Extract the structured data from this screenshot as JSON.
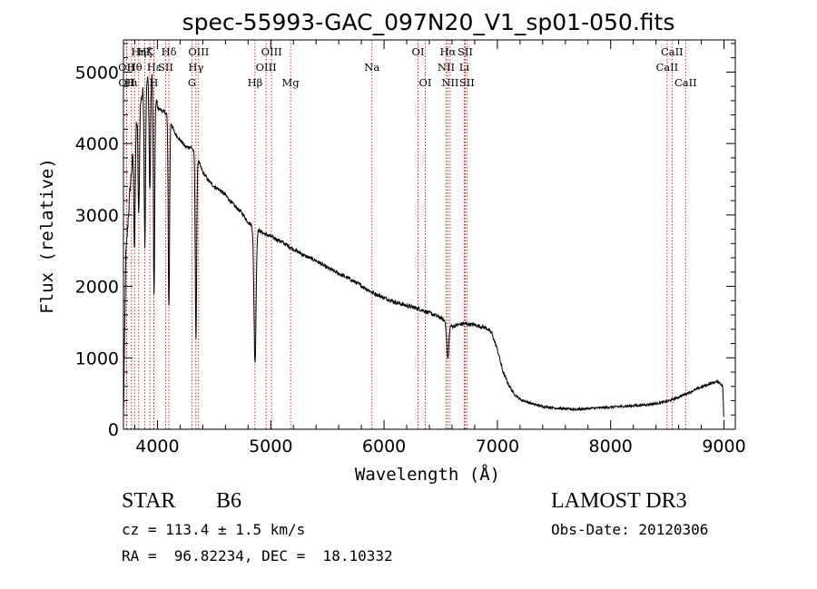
{
  "chart_data": {
    "type": "line",
    "title": "spec-55993-GAC_097N20_V1_sp01-050.fits",
    "xlabel": "Wavelength (Å)",
    "ylabel": "Flux (relative)",
    "xlim": [
      3700,
      9100
    ],
    "ylim": [
      0,
      5450
    ],
    "x_ticks": [
      4000,
      5000,
      6000,
      7000,
      8000,
      9000
    ],
    "y_ticks": [
      0,
      1000,
      2000,
      3000,
      4000,
      5000
    ],
    "continuum": {
      "x": [
        3700,
        3720,
        3760,
        3800,
        3840,
        3880,
        3920,
        3960,
        4000,
        4050,
        4100,
        4150,
        4200,
        4250,
        4300,
        4350,
        4400,
        4450,
        4500,
        4550,
        4600,
        4650,
        4700,
        4750,
        4800,
        4850,
        4900,
        4950,
        5000,
        5100,
        5200,
        5300,
        5400,
        5500,
        5600,
        5700,
        5800,
        5900,
        6000,
        6100,
        6200,
        6300,
        6400,
        6500,
        6550,
        6600,
        6700,
        6800,
        6900,
        6950,
        7000,
        7050,
        7100,
        7150,
        7200,
        7300,
        7400,
        7500,
        7600,
        7700,
        7800,
        7900,
        8000,
        8100,
        8200,
        8300,
        8400,
        8500,
        8600,
        8700,
        8800,
        8900,
        8950,
        8990,
        9000
      ],
      "y": [
        150,
        2400,
        3400,
        4200,
        4500,
        4800,
        4900,
        4950,
        4500,
        4450,
        4400,
        4150,
        4050,
        3950,
        3950,
        3800,
        3600,
        3480,
        3400,
        3350,
        3280,
        3180,
        3100,
        3020,
        2900,
        2830,
        2780,
        2730,
        2700,
        2620,
        2520,
        2430,
        2360,
        2260,
        2180,
        2100,
        2010,
        1910,
        1840,
        1780,
        1730,
        1690,
        1630,
        1560,
        1500,
        1440,
        1480,
        1460,
        1420,
        1350,
        1120,
        800,
        620,
        490,
        420,
        360,
        320,
        300,
        285,
        280,
        290,
        300,
        310,
        320,
        330,
        340,
        360,
        390,
        450,
        520,
        590,
        650,
        670,
        600,
        50
      ]
    },
    "absorption_features": [
      {
        "wavelength": 3798,
        "depth": 1600
      },
      {
        "wavelength": 3835,
        "depth": 1500
      },
      {
        "wavelength": 3889,
        "depth": 2200
      },
      {
        "wavelength": 3933,
        "depth": 1600
      },
      {
        "wavelength": 3970,
        "depth": 3000
      },
      {
        "wavelength": 4101,
        "depth": 2700
      },
      {
        "wavelength": 4340,
        "depth": 2600
      },
      {
        "wavelength": 4861,
        "depth": 1900
      },
      {
        "wavelength": 6563,
        "depth": 500
      }
    ],
    "spectral_lines": [
      {
        "label": "Hη",
        "wavelength": 3835,
        "row": 0
      },
      {
        "label": "Hζ",
        "wavelength": 3889,
        "row": 0
      },
      {
        "label": "K",
        "wavelength": 3933,
        "row": 0
      },
      {
        "label": "Hδ",
        "wavelength": 4101,
        "row": 0
      },
      {
        "label": "OIII",
        "wavelength": 4363,
        "row": 0
      },
      {
        "label": "OIII",
        "wavelength": 5007,
        "row": 0
      },
      {
        "label": "OI",
        "wavelength": 6300,
        "row": 0
      },
      {
        "label": "Hα",
        "wavelength": 6563,
        "row": 0
      },
      {
        "label": "SII",
        "wavelength": 6716,
        "row": 0
      },
      {
        "label": "CaII",
        "wavelength": 8542,
        "row": 0
      },
      {
        "label": "OII",
        "wavelength": 3727,
        "row": 1
      },
      {
        "label": "Hθ",
        "wavelength": 3798,
        "row": 1
      },
      {
        "label": "Hε",
        "wavelength": 3970,
        "row": 1
      },
      {
        "label": "SII",
        "wavelength": 4072,
        "row": 1
      },
      {
        "label": "Hγ",
        "wavelength": 4340,
        "row": 1
      },
      {
        "label": "OIII",
        "wavelength": 4959,
        "row": 1
      },
      {
        "label": "Na",
        "wavelength": 5893,
        "row": 1
      },
      {
        "label": "NII",
        "wavelength": 6548,
        "row": 1
      },
      {
        "label": "Li",
        "wavelength": 6708,
        "row": 1
      },
      {
        "label": "CaII",
        "wavelength": 8498,
        "row": 1
      },
      {
        "label": "OII",
        "wavelength": 3729,
        "row": 2
      },
      {
        "label": "Hι",
        "wavelength": 3771,
        "row": 2
      },
      {
        "label": "H",
        "wavelength": 3968,
        "row": 2
      },
      {
        "label": "G",
        "wavelength": 4305,
        "row": 2
      },
      {
        "label": "Hβ",
        "wavelength": 4861,
        "row": 2
      },
      {
        "label": "Mg",
        "wavelength": 5175,
        "row": 2
      },
      {
        "label": "OI",
        "wavelength": 6364,
        "row": 2
      },
      {
        "label": "NII",
        "wavelength": 6583,
        "row": 2
      },
      {
        "label": "SII",
        "wavelength": 6731,
        "row": 2
      },
      {
        "label": "CaII",
        "wavelength": 8662,
        "row": 2
      }
    ]
  },
  "info": {
    "object_class": "STAR",
    "subclass": "B6",
    "survey": "LAMOST DR3",
    "redshift": "cz = 113.4 ± 1.5 km/s",
    "obs_date": "Obs-Date: 20120306",
    "coordinates": "RA =  96.82234, DEC =  18.10332"
  }
}
